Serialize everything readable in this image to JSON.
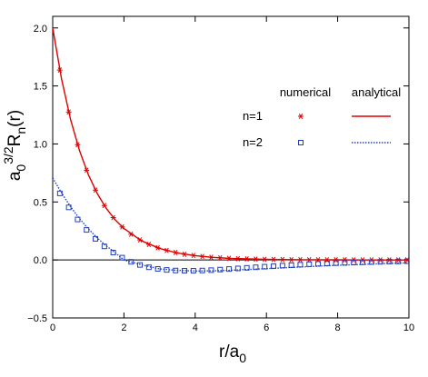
{
  "chart_data": {
    "type": "line",
    "xlabel": {
      "base": "r/a",
      "sub": "0"
    },
    "ylabel": {
      "base": "a",
      "sub": "0",
      "sup": "3/2",
      "main": "R",
      "main_sub": "n",
      "tail": "(r)"
    },
    "xlim": [
      0,
      10
    ],
    "ylim": [
      -0.5,
      2.1
    ],
    "x_ticks": [
      0,
      2,
      4,
      6,
      8,
      10
    ],
    "x_tick_labels": [
      "0",
      "2",
      "4",
      "6",
      "8",
      "10"
    ],
    "y_ticks": [
      -0.5,
      0.0,
      0.5,
      1.0,
      1.5,
      2.0
    ],
    "y_tick_labels": [
      "−0.5",
      "0.0",
      "0.5",
      "1.0",
      "1.5",
      "2.0"
    ],
    "zero_line": true,
    "grid": false,
    "legend": {
      "placement": "top-right",
      "header_numerical": "numerical",
      "header_analytical": "analytical",
      "rows": [
        {
          "label": "n=1",
          "marker": "asterisk",
          "line": "solid",
          "color": "#e00000"
        },
        {
          "label": "n=2",
          "marker": "square",
          "line": "dotted",
          "color": "#2040c0"
        }
      ]
    },
    "numerical_x": [
      0.2,
      0.45,
      0.7,
      0.95,
      1.2,
      1.45,
      1.7,
      1.95,
      2.2,
      2.45,
      2.7,
      2.95,
      3.2,
      3.45,
      3.7,
      3.95,
      4.2,
      4.45,
      4.7,
      4.95,
      5.2,
      5.45,
      5.7,
      5.95,
      6.2,
      6.45,
      6.7,
      6.95,
      7.2,
      7.45,
      7.7,
      7.95,
      8.2,
      8.45,
      8.7,
      8.95,
      9.2,
      9.45,
      9.7,
      9.95
    ],
    "series": [
      {
        "name": "n=1",
        "color": "#e00000",
        "analytical_x": [
          0,
          0.25,
          0.5,
          0.75,
          1.0,
          1.25,
          1.5,
          1.75,
          2.0,
          2.5,
          3.0,
          3.5,
          4.0,
          4.5,
          5.0,
          6.0,
          7.0,
          8.0,
          9.0,
          10.0
        ],
        "analytical_y": [
          2.0,
          1.558,
          1.213,
          0.945,
          0.736,
          0.573,
          0.446,
          0.348,
          0.271,
          0.164,
          0.1,
          0.06,
          0.037,
          0.022,
          0.013,
          0.005,
          0.002,
          0.001,
          0.0,
          0.0
        ],
        "numerical_y": [
          1.637,
          1.275,
          0.993,
          0.773,
          0.602,
          0.469,
          0.365,
          0.285,
          0.222,
          0.173,
          0.134,
          0.105,
          0.082,
          0.064,
          0.049,
          0.039,
          0.03,
          0.023,
          0.018,
          0.014,
          0.011,
          0.009,
          0.007,
          0.005,
          0.004,
          0.003,
          0.002,
          0.002,
          0.001,
          0.001,
          0.001,
          0.001,
          0.001,
          0.0,
          0.0,
          0.0,
          0.0,
          0.0,
          0.0,
          0.0
        ]
      },
      {
        "name": "n=2",
        "color": "#2040c0",
        "analytical_x": [
          0,
          0.25,
          0.5,
          0.75,
          1.0,
          1.25,
          1.5,
          1.75,
          2.0,
          2.5,
          3.0,
          3.5,
          4.0,
          4.5,
          5.0,
          6.0,
          7.0,
          8.0,
          9.0,
          10.0
        ],
        "analytical_y": [
          0.707,
          0.577,
          0.46,
          0.357,
          0.268,
          0.19,
          0.122,
          0.064,
          0.0,
          -0.043,
          -0.077,
          -0.09,
          -0.095,
          -0.094,
          -0.089,
          -0.075,
          -0.06,
          -0.046,
          -0.035,
          -0.025
        ],
        "numerical_y": [
          0.574,
          0.453,
          0.349,
          0.259,
          0.182,
          0.117,
          0.064,
          0.02,
          -0.016,
          -0.043,
          -0.063,
          -0.077,
          -0.086,
          -0.091,
          -0.093,
          -0.093,
          -0.091,
          -0.088,
          -0.083,
          -0.078,
          -0.073,
          -0.068,
          -0.063,
          -0.058,
          -0.054,
          -0.049,
          -0.045,
          -0.041,
          -0.037,
          -0.033,
          -0.03,
          -0.027,
          -0.025,
          -0.022,
          -0.02,
          -0.018,
          -0.016,
          -0.014,
          -0.013,
          -0.011
        ]
      }
    ]
  }
}
